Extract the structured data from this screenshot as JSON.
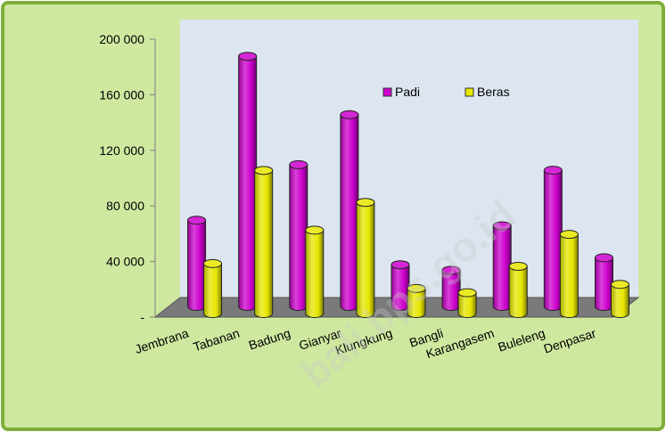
{
  "chart_data": {
    "type": "bar",
    "title": "",
    "xlabel": "",
    "ylabel": "",
    "ylim": [
      0,
      200000
    ],
    "yticks": [
      0,
      40000,
      80000,
      120000,
      160000,
      200000
    ],
    "ytick_labels": [
      "-",
      "40 000",
      "80 000",
      "120 000",
      "160 000",
      "200 000"
    ],
    "categories": [
      "Jembrana",
      "Tabanan",
      "Badung",
      "Gianyar",
      "Klungkung",
      "Bangli",
      "Karangasem",
      "Buleleng",
      "Denpasar"
    ],
    "series": [
      {
        "name": "Padi",
        "color": "#cc00cc",
        "values": [
          62000,
          180000,
          102000,
          138000,
          30000,
          26000,
          58000,
          98000,
          35000
        ]
      },
      {
        "name": "Beras",
        "color": "#e6e600",
        "values": [
          36000,
          103000,
          60000,
          80000,
          18000,
          15000,
          34000,
          57000,
          21000
        ]
      }
    ],
    "legend_position": "top-right",
    "grid": false,
    "colors": {
      "frame_bg": "#cfe8a0",
      "frame_border": "#7faf3a",
      "plot_bg": "#dde6f0",
      "floor": "#7a7a7a"
    },
    "watermark": "bali.bps.go.id"
  }
}
